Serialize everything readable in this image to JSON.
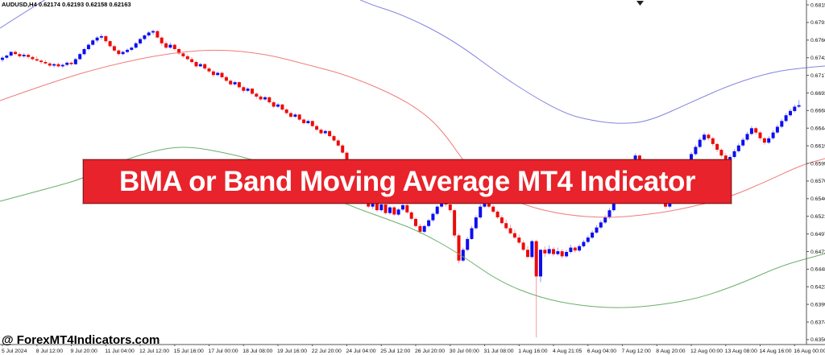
{
  "window": {
    "ohlc_header": "AUDUSD,H4 0.62174 0.62193 0.62158 0.62163"
  },
  "banner": {
    "text": "BMA or Band Moving Average MT4 Indicator",
    "bg_color": "#e8232b",
    "text_color": "#ffffff"
  },
  "watermark": {
    "text": "@ ForexMT4Indicators.com",
    "color": "#000000"
  },
  "chart_data": {
    "type": "candlestick",
    "symbol": "AUDUSD",
    "timeframe": "H4",
    "background": "#ffffff",
    "grid": false,
    "price_encoding": "price = 0.60000 + v/100000 (all candle and band values below are v)",
    "y_axis": {
      "side": "right",
      "top_value": 0.68155,
      "step": 0.00245,
      "labels": [
        "0.68155",
        "0.67910",
        "0.67665",
        "0.67420",
        "0.67175",
        "0.66930",
        "0.66685",
        "0.66440",
        "0.66195",
        "0.65950",
        "0.65705",
        "0.65460",
        "0.65215",
        "0.64970",
        "0.64725",
        "0.64480",
        "0.64235",
        "0.63990",
        "0.63745",
        "0.63500"
      ]
    },
    "x_axis": {
      "labels": [
        "5 Jul 2024",
        "8 Jul 12:00",
        "9 Jul 20:00",
        "11 Jul 04:00",
        "12 Jul 12:00",
        "15 Jul 16:00",
        "17 Jul 00:00",
        "18 Jul 08:00",
        "19 Jul 16:00",
        "22 Jul 20:00",
        "24 Jul 04:00",
        "25 Jul 12:00",
        "26 Jul 20:00",
        "30 Jul 00:00",
        "31 Jul 08:00",
        "1 Aug 16:00",
        "4 Aug 21:05",
        "6 Aug 04:00",
        "7 Aug 12:00",
        "8 Aug 20:00",
        "12 Aug 00:00",
        "13 Aug 08:00",
        "14 Aug 16:00",
        "16 Aug 00:00"
      ]
    },
    "candle_colors": {
      "bull": "#0d0df0",
      "bear": "#ee0a0a",
      "bull_wick": "#9a9af2",
      "bear_wick": "#f5a0a0"
    },
    "candles": [
      [
        7390,
        7445,
        7360,
        7420
      ],
      [
        7420,
        7465,
        7400,
        7450
      ],
      [
        7450,
        7510,
        7430,
        7500
      ],
      [
        7500,
        7525,
        7455,
        7470
      ],
      [
        7470,
        7490,
        7415,
        7440
      ],
      [
        7440,
        7485,
        7420,
        7460
      ],
      [
        7460,
        7480,
        7405,
        7430
      ],
      [
        7430,
        7450,
        7380,
        7400
      ],
      [
        7400,
        7440,
        7370,
        7380
      ],
      [
        7380,
        7400,
        7330,
        7360
      ],
      [
        7360,
        7390,
        7325,
        7340
      ],
      [
        7340,
        7360,
        7290,
        7310
      ],
      [
        7310,
        7345,
        7285,
        7330
      ],
      [
        7330,
        7350,
        7280,
        7300
      ],
      [
        7300,
        7340,
        7275,
        7320
      ],
      [
        7320,
        7370,
        7300,
        7350
      ],
      [
        7350,
        7365,
        7310,
        7330
      ],
      [
        7330,
        7420,
        7320,
        7400
      ],
      [
        7400,
        7490,
        7390,
        7470
      ],
      [
        7470,
        7560,
        7455,
        7540
      ],
      [
        7540,
        7620,
        7520,
        7600
      ],
      [
        7600,
        7680,
        7585,
        7660
      ],
      [
        7660,
        7720,
        7630,
        7700
      ],
      [
        7700,
        7750,
        7670,
        7720
      ],
      [
        7720,
        7735,
        7620,
        7650
      ],
      [
        7650,
        7665,
        7560,
        7580
      ],
      [
        7580,
        7600,
        7500,
        7520
      ],
      [
        7520,
        7540,
        7450,
        7470
      ],
      [
        7470,
        7520,
        7455,
        7500
      ],
      [
        7500,
        7550,
        7480,
        7530
      ],
      [
        7530,
        7580,
        7510,
        7560
      ],
      [
        7560,
        7640,
        7545,
        7620
      ],
      [
        7620,
        7700,
        7600,
        7680
      ],
      [
        7680,
        7745,
        7660,
        7730
      ],
      [
        7730,
        7790,
        7710,
        7770
      ],
      [
        7770,
        7810,
        7740,
        7790
      ],
      [
        7790,
        7800,
        7690,
        7700
      ],
      [
        7700,
        7720,
        7590,
        7620
      ],
      [
        7620,
        7650,
        7540,
        7560
      ],
      [
        7560,
        7630,
        7545,
        7600
      ],
      [
        7600,
        7615,
        7520,
        7540
      ],
      [
        7540,
        7560,
        7460,
        7480
      ],
      [
        7480,
        7500,
        7420,
        7440
      ],
      [
        7440,
        7470,
        7380,
        7400
      ],
      [
        7400,
        7430,
        7340,
        7360
      ],
      [
        7360,
        7380,
        7280,
        7300
      ],
      [
        7300,
        7350,
        7290,
        7330
      ],
      [
        7330,
        7345,
        7250,
        7270
      ],
      [
        7270,
        7290,
        7210,
        7230
      ],
      [
        7230,
        7250,
        7150,
        7180
      ],
      [
        7180,
        7230,
        7160,
        7210
      ],
      [
        7210,
        7225,
        7130,
        7150
      ],
      [
        7150,
        7170,
        7080,
        7100
      ],
      [
        7100,
        7120,
        7030,
        7050
      ],
      [
        7050,
        7100,
        7035,
        7080
      ],
      [
        7080,
        7090,
        6990,
        7010
      ],
      [
        7010,
        7030,
        6930,
        6960
      ],
      [
        6960,
        7010,
        6945,
        6990
      ],
      [
        6990,
        7000,
        6900,
        6920
      ],
      [
        6920,
        6940,
        6850,
        6880
      ],
      [
        6880,
        6900,
        6820,
        6840
      ],
      [
        6840,
        6890,
        6825,
        6870
      ],
      [
        6870,
        6880,
        6780,
        6800
      ],
      [
        6800,
        6820,
        6720,
        6740
      ],
      [
        6740,
        6790,
        6720,
        6770
      ],
      [
        6770,
        6780,
        6680,
        6700
      ],
      [
        6700,
        6720,
        6630,
        6650
      ],
      [
        6650,
        6670,
        6580,
        6600
      ],
      [
        6600,
        6650,
        6585,
        6630
      ],
      [
        6630,
        6640,
        6540,
        6560
      ],
      [
        6560,
        6580,
        6490,
        6510
      ],
      [
        6510,
        6560,
        6495,
        6540
      ],
      [
        6540,
        6550,
        6450,
        6470
      ],
      [
        6470,
        6490,
        6400,
        6420
      ],
      [
        6420,
        6440,
        6350,
        6370
      ],
      [
        6370,
        6420,
        6355,
        6400
      ],
      [
        6400,
        6410,
        6310,
        6330
      ],
      [
        6330,
        6350,
        6250,
        6270
      ],
      [
        6270,
        6290,
        6180,
        6200
      ],
      [
        6200,
        6220,
        6080,
        6100
      ],
      [
        6100,
        6120,
        5960,
        5980
      ],
      [
        5980,
        6000,
        5830,
        5850
      ],
      [
        5850,
        5870,
        5680,
        5700
      ],
      [
        5700,
        5730,
        5530,
        5550
      ],
      [
        5550,
        5580,
        5420,
        5450
      ],
      [
        5450,
        5520,
        5330,
        5350
      ],
      [
        5350,
        5440,
        5320,
        5420
      ],
      [
        5420,
        5450,
        5280,
        5300
      ],
      [
        5300,
        5400,
        5280,
        5380
      ],
      [
        5380,
        5400,
        5240,
        5260
      ],
      [
        5260,
        5360,
        5240,
        5340
      ],
      [
        5340,
        5360,
        5220,
        5240
      ],
      [
        5240,
        5330,
        5220,
        5310
      ],
      [
        5310,
        5390,
        5290,
        5370
      ],
      [
        5370,
        5390,
        5250,
        5270
      ],
      [
        5270,
        5290,
        5160,
        5180
      ],
      [
        5180,
        5200,
        5060,
        5080
      ],
      [
        5080,
        5110,
        4970,
        5000
      ],
      [
        5000,
        5100,
        4980,
        5080
      ],
      [
        5080,
        5180,
        5060,
        5160
      ],
      [
        5160,
        5270,
        5140,
        5250
      ],
      [
        5250,
        5370,
        5230,
        5350
      ],
      [
        5350,
        5450,
        5330,
        5430
      ],
      [
        5430,
        5460,
        5350,
        5380
      ],
      [
        5380,
        5400,
        5270,
        5300
      ],
      [
        5300,
        5320,
        4920,
        4950
      ],
      [
        4950,
        4980,
        4560,
        4600
      ],
      [
        4600,
        4780,
        4580,
        4750
      ],
      [
        4750,
        4930,
        4730,
        4900
      ],
      [
        4900,
        5080,
        4890,
        5050
      ],
      [
        5050,
        5230,
        5030,
        5200
      ],
      [
        5200,
        5380,
        5180,
        5350
      ],
      [
        5350,
        5440,
        5330,
        5420
      ],
      [
        5420,
        5450,
        5330,
        5350
      ],
      [
        5350,
        5370,
        5260,
        5280
      ],
      [
        5280,
        5300,
        5180,
        5200
      ],
      [
        5200,
        5230,
        5100,
        5120
      ],
      [
        5120,
        5170,
        5030,
        5050
      ],
      [
        5050,
        5100,
        4960,
        4980
      ],
      [
        4980,
        5030,
        4900,
        4920
      ],
      [
        4920,
        4960,
        4830,
        4850
      ],
      [
        4850,
        4880,
        4730,
        4750
      ],
      [
        4750,
        4800,
        4630,
        4650
      ],
      [
        4650,
        4890,
        4630,
        4870
      ],
      [
        4870,
        4890,
        3530,
        4380
      ],
      [
        4380,
        4760,
        4300,
        4750
      ],
      [
        4750,
        4800,
        4650,
        4700
      ],
      [
        4700,
        4810,
        4680,
        4760
      ],
      [
        4760,
        4790,
        4660,
        4690
      ],
      [
        4690,
        4780,
        4670,
        4730
      ],
      [
        4730,
        4760,
        4630,
        4660
      ],
      [
        4660,
        4750,
        4640,
        4720
      ],
      [
        4720,
        4820,
        4700,
        4780
      ],
      [
        4780,
        4800,
        4710,
        4740
      ],
      [
        4740,
        4830,
        4720,
        4800
      ],
      [
        4800,
        4890,
        4780,
        4860
      ],
      [
        4860,
        4950,
        4840,
        4920
      ],
      [
        4920,
        5020,
        4900,
        4990
      ],
      [
        4990,
        5090,
        4970,
        5060
      ],
      [
        5060,
        5160,
        5040,
        5130
      ],
      [
        5130,
        5230,
        5110,
        5200
      ],
      [
        5200,
        5330,
        5180,
        5300
      ],
      [
        5300,
        5450,
        5280,
        5420
      ],
      [
        5420,
        5590,
        5400,
        5560
      ],
      [
        5560,
        5730,
        5540,
        5700
      ],
      [
        5700,
        5850,
        5680,
        5820
      ],
      [
        5820,
        5980,
        5800,
        5950
      ],
      [
        5950,
        6090,
        5930,
        6060
      ],
      [
        6060,
        6080,
        5970,
        6000
      ],
      [
        6000,
        6020,
        5870,
        5900
      ],
      [
        5900,
        5920,
        5750,
        5780
      ],
      [
        5780,
        5800,
        5620,
        5650
      ],
      [
        5650,
        5670,
        5490,
        5520
      ],
      [
        5520,
        5560,
        5390,
        5420
      ],
      [
        5420,
        5450,
        5320,
        5350
      ],
      [
        5350,
        5460,
        5330,
        5430
      ],
      [
        5430,
        5580,
        5410,
        5550
      ],
      [
        5550,
        5710,
        5530,
        5680
      ],
      [
        5680,
        5850,
        5660,
        5820
      ],
      [
        5820,
        5990,
        5800,
        5960
      ],
      [
        5960,
        6110,
        5940,
        6080
      ],
      [
        6080,
        6210,
        6060,
        6180
      ],
      [
        6180,
        6310,
        6160,
        6280
      ],
      [
        6280,
        6380,
        6260,
        6350
      ],
      [
        6350,
        6370,
        6270,
        6300
      ],
      [
        6300,
        6320,
        6190,
        6220
      ],
      [
        6220,
        6240,
        6110,
        6140
      ],
      [
        6140,
        6160,
        6030,
        6060
      ],
      [
        6060,
        6090,
        5950,
        5980
      ],
      [
        5980,
        6070,
        5960,
        6040
      ],
      [
        6040,
        6150,
        6020,
        6120
      ],
      [
        6120,
        6230,
        6100,
        6200
      ],
      [
        6200,
        6310,
        6180,
        6280
      ],
      [
        6280,
        6390,
        6260,
        6360
      ],
      [
        6360,
        6470,
        6340,
        6440
      ],
      [
        6440,
        6460,
        6350,
        6380
      ],
      [
        6380,
        6400,
        6270,
        6300
      ],
      [
        6300,
        6320,
        6210,
        6240
      ],
      [
        6240,
        6330,
        6220,
        6300
      ],
      [
        6300,
        6410,
        6280,
        6380
      ],
      [
        6380,
        6490,
        6360,
        6460
      ],
      [
        6460,
        6570,
        6440,
        6540
      ],
      [
        6540,
        6650,
        6520,
        6620
      ],
      [
        6620,
        6710,
        6600,
        6680
      ],
      [
        6680,
        6770,
        6660,
        6740
      ],
      [
        6740,
        6830,
        6720,
        6760
      ]
    ],
    "bands": {
      "upper": {
        "label": "upper band",
        "color": "#8585e0",
        "points": [
          [
            0,
            7831
          ],
          [
            57,
            8245
          ],
          [
            150,
            8838
          ],
          [
            280,
            9006
          ],
          [
            380,
            8614
          ],
          [
            448,
            8200
          ],
          [
            500,
            8021
          ],
          [
            563,
            7663
          ],
          [
            630,
            7103
          ],
          [
            697,
            6656
          ],
          [
            735,
            6544
          ],
          [
            770,
            6499
          ],
          [
            805,
            6533
          ],
          [
            860,
            6812
          ],
          [
            910,
            7058
          ],
          [
            960,
            7226
          ],
          [
            1000,
            7282
          ],
          [
            1024,
            7305
          ]
        ]
      },
      "middle": {
        "label": "middle band",
        "color": "#f07b7b",
        "points": [
          [
            0,
            6824
          ],
          [
            70,
            7103
          ],
          [
            140,
            7327
          ],
          [
            210,
            7484
          ],
          [
            270,
            7540
          ],
          [
            330,
            7473
          ],
          [
            380,
            7327
          ],
          [
            430,
            7182
          ],
          [
            490,
            6902
          ],
          [
            530,
            6623
          ],
          [
            555,
            6320
          ],
          [
            580,
            5906
          ],
          [
            610,
            5593
          ],
          [
            650,
            5369
          ],
          [
            700,
            5235
          ],
          [
            755,
            5190
          ],
          [
            810,
            5246
          ],
          [
            855,
            5336
          ],
          [
            905,
            5481
          ],
          [
            950,
            5694
          ],
          [
            995,
            5929
          ],
          [
            1024,
            6018
          ]
        ]
      },
      "lower": {
        "label": "lower band",
        "color": "#6aaf6a",
        "points": [
          [
            0,
            5425
          ],
          [
            60,
            5604
          ],
          [
            103,
            5738
          ],
          [
            150,
            5985
          ],
          [
            200,
            6153
          ],
          [
            235,
            6186
          ],
          [
            280,
            6097
          ],
          [
            320,
            5985
          ],
          [
            360,
            5783
          ],
          [
            400,
            5537
          ],
          [
            440,
            5336
          ],
          [
            480,
            5179
          ],
          [
            520,
            5011
          ],
          [
            570,
            4698
          ],
          [
            620,
            4306
          ],
          [
            670,
            4083
          ],
          [
            720,
            3971
          ],
          [
            770,
            3937
          ],
          [
            820,
            3982
          ],
          [
            870,
            4083
          ],
          [
            920,
            4284
          ],
          [
            970,
            4530
          ],
          [
            1010,
            4653
          ],
          [
            1024,
            4698
          ]
        ]
      }
    }
  }
}
